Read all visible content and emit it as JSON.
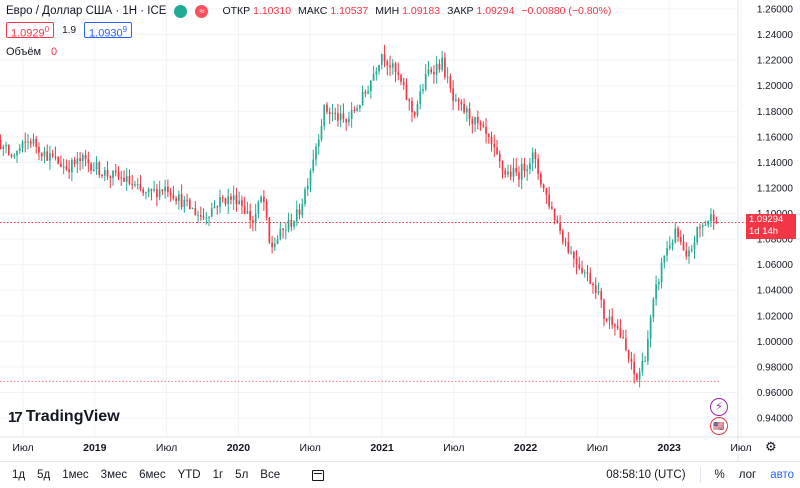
{
  "header": {
    "symbol": "Евро / Доллар США · 1Н · ICE",
    "ohlc": [
      {
        "key": "ОТКР",
        "value": "1.10310"
      },
      {
        "key": "МАКС",
        "value": "1.10537"
      },
      {
        "key": "МИН",
        "value": "1.09183"
      },
      {
        "key": "ЗАКР",
        "value": "1.09294"
      },
      {
        "key": "",
        "value": "−0.00880 (−0.80%)"
      }
    ],
    "sell_price": "1.0929",
    "sell_price_sup": "0",
    "spread": "1.9",
    "buy_price": "1.0930",
    "buy_price_sup": "9",
    "volume_label": "Объём",
    "volume_value": "0",
    "dot_red_symbol": "≈"
  },
  "logo": {
    "mark": "17",
    "text": "TradingView"
  },
  "current_price": {
    "value": "1.09294",
    "countdown": "1d 14h"
  },
  "bottom_bar": {
    "ranges": [
      "1д",
      "5д",
      "1мес",
      "3мес",
      "6мес",
      "YTD",
      "1г",
      "5л",
      "Все"
    ],
    "clock": "08:58:10 (UTC)",
    "percent": "%",
    "log": "лог",
    "auto": "авто"
  },
  "icons": {
    "flash": "⚡",
    "flag": "🇺🇸",
    "gear": "⚙"
  },
  "colors": {
    "up": "#22ab94",
    "down": "#f23645",
    "accent": "#2962ff",
    "grid": "#f0f3fa"
  },
  "chart_data": {
    "type": "candlestick",
    "title": "",
    "xlabel": "",
    "ylabel": "",
    "ylim": [
      0.93,
      1.265
    ],
    "y_ticks": [
      "1.26000",
      "1.24000",
      "1.22000",
      "1.20000",
      "1.18000",
      "1.16000",
      "1.14000",
      "1.12000",
      "1.10000",
      "1.08000",
      "1.06000",
      "1.04000",
      "1.02000",
      "1.00000",
      "0.98000",
      "0.96000",
      "0.94000"
    ],
    "x_ticks": [
      {
        "label": "Июл",
        "t": 2018.5,
        "bold": false
      },
      {
        "label": "2019",
        "t": 2019.0,
        "bold": true
      },
      {
        "label": "Июл",
        "t": 2019.5,
        "bold": false
      },
      {
        "label": "2020",
        "t": 2020.0,
        "bold": true
      },
      {
        "label": "Июл",
        "t": 2020.5,
        "bold": false
      },
      {
        "label": "2021",
        "t": 2021.0,
        "bold": true
      },
      {
        "label": "Июл",
        "t": 2021.5,
        "bold": false
      },
      {
        "label": "2022",
        "t": 2022.0,
        "bold": true
      },
      {
        "label": "Июл",
        "t": 2022.5,
        "bold": false
      },
      {
        "label": "2023",
        "t": 2023.0,
        "bold": true
      },
      {
        "label": "Июл",
        "t": 2023.5,
        "bold": false
      }
    ],
    "x_range": [
      2018.0,
      2023.75
    ],
    "candle_width_years": 0.0191,
    "current_price_line": 1.09294,
    "low_reference_line": 0.9687,
    "close_series": [
      {
        "t": 2018.0,
        "close": 1.197
      },
      {
        "t": 2018.08,
        "close": 1.178
      },
      {
        "t": 2018.15,
        "close": 1.17
      },
      {
        "t": 2018.3,
        "close": 1.16
      },
      {
        "t": 2018.42,
        "close": 1.144
      },
      {
        "t": 2018.55,
        "close": 1.158
      },
      {
        "t": 2018.65,
        "close": 1.147
      },
      {
        "t": 2018.8,
        "close": 1.136
      },
      {
        "t": 2018.92,
        "close": 1.142
      },
      {
        "t": 2019.08,
        "close": 1.131
      },
      {
        "t": 2019.22,
        "close": 1.126
      },
      {
        "t": 2019.35,
        "close": 1.114
      },
      {
        "t": 2019.5,
        "close": 1.121
      },
      {
        "t": 2019.62,
        "close": 1.108
      },
      {
        "t": 2019.75,
        "close": 1.097
      },
      {
        "t": 2019.88,
        "close": 1.111
      },
      {
        "t": 2020.0,
        "close": 1.112
      },
      {
        "t": 2020.1,
        "close": 1.093
      },
      {
        "t": 2020.17,
        "close": 1.115
      },
      {
        "t": 2020.22,
        "close": 1.072
      },
      {
        "t": 2020.3,
        "close": 1.085
      },
      {
        "t": 2020.42,
        "close": 1.1
      },
      {
        "t": 2020.48,
        "close": 1.125
      },
      {
        "t": 2020.6,
        "close": 1.182
      },
      {
        "t": 2020.75,
        "close": 1.171
      },
      {
        "t": 2020.88,
        "close": 1.193
      },
      {
        "t": 2021.0,
        "close": 1.226
      },
      {
        "t": 2021.12,
        "close": 1.205
      },
      {
        "t": 2021.22,
        "close": 1.177
      },
      {
        "t": 2021.32,
        "close": 1.211
      },
      {
        "t": 2021.42,
        "close": 1.218
      },
      {
        "t": 2021.5,
        "close": 1.186
      },
      {
        "t": 2021.6,
        "close": 1.178
      },
      {
        "t": 2021.72,
        "close": 1.161
      },
      {
        "t": 2021.85,
        "close": 1.132
      },
      {
        "t": 2021.95,
        "close": 1.131
      },
      {
        "t": 2022.05,
        "close": 1.145
      },
      {
        "t": 2022.12,
        "close": 1.121
      },
      {
        "t": 2022.2,
        "close": 1.098
      },
      {
        "t": 2022.3,
        "close": 1.072
      },
      {
        "t": 2022.4,
        "close": 1.056
      },
      {
        "t": 2022.5,
        "close": 1.041
      },
      {
        "t": 2022.55,
        "close": 1.018
      },
      {
        "t": 2022.62,
        "close": 1.017
      },
      {
        "t": 2022.7,
        "close": 0.992
      },
      {
        "t": 2022.77,
        "close": 0.969
      },
      {
        "t": 2022.83,
        "close": 0.988
      },
      {
        "t": 2022.9,
        "close": 1.036
      },
      {
        "t": 2022.97,
        "close": 1.07
      },
      {
        "t": 2023.05,
        "close": 1.085
      },
      {
        "t": 2023.12,
        "close": 1.062
      },
      {
        "t": 2023.2,
        "close": 1.087
      },
      {
        "t": 2023.32,
        "close": 1.1
      },
      {
        "t": 2023.42,
        "close": 1.073
      },
      {
        "t": 2023.52,
        "close": 1.096
      },
      {
        "t": 2023.6,
        "close": 1.103
      },
      {
        "t": 2023.66,
        "close": 1.093
      }
    ]
  }
}
